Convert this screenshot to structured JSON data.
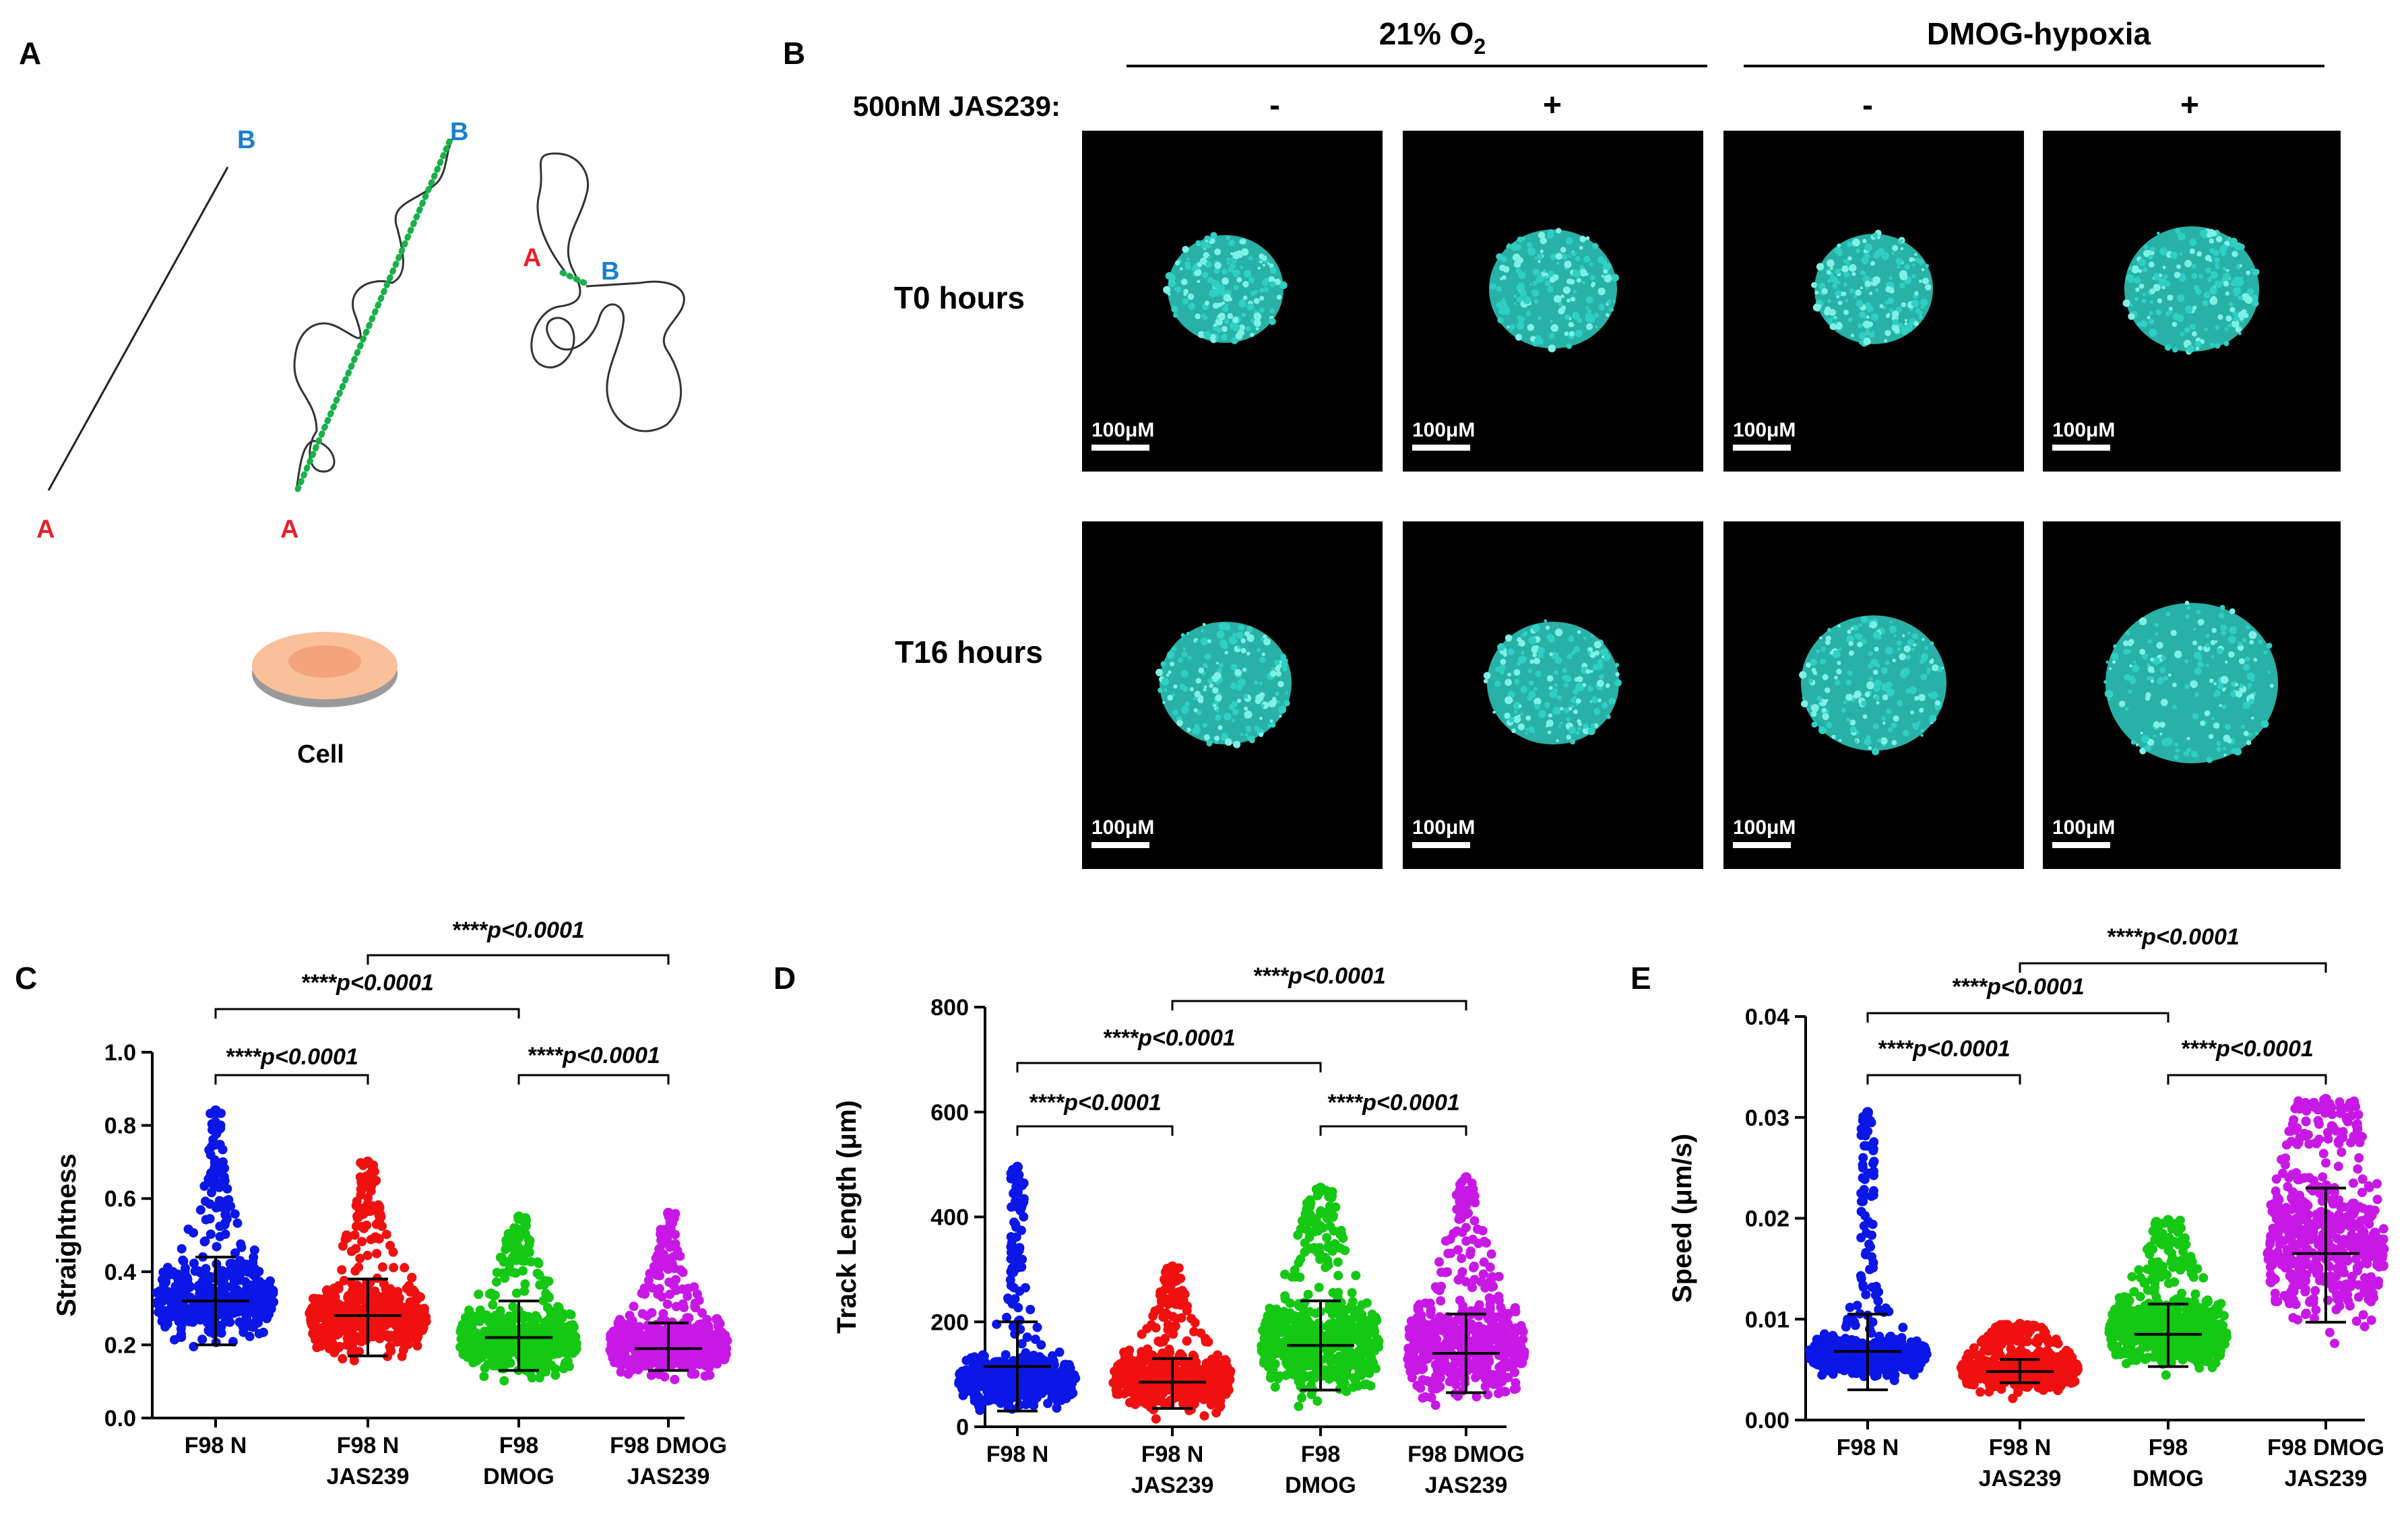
{
  "panels": {
    "a": {
      "label": "A",
      "point_a": "A",
      "point_b": "B",
      "cell_label": "Cell",
      "colors": {
        "a": "#e8212b",
        "b": "#1a7fcf",
        "dots": "#18b04a",
        "cell": "#f9c09a",
        "cell_inner": "#f3a47c",
        "cell_shadow": "#9a9a9a"
      }
    },
    "b": {
      "label": "B",
      "headers": {
        "normoxia_base": "21% O",
        "normoxia_sub": "2",
        "hypoxia": "DMOG-hypoxia"
      },
      "jas_label": "500nM JAS239:",
      "jas_signs": [
        "-",
        "+",
        "-",
        "+"
      ],
      "row_labels": [
        "T0 hours",
        "T16 hours"
      ],
      "scale_bar": "100μM",
      "colors": {
        "background": "#000000",
        "spheroid": "#2fd0c4",
        "spheroid_bright": "#7ff0e6"
      }
    }
  },
  "chart_data": [
    {
      "panel_label": "C",
      "type": "scatter",
      "ylabel": "Straightness",
      "ylim": [
        0,
        1.0
      ],
      "yticks": [
        0.0,
        0.2,
        0.4,
        0.6,
        0.8,
        1.0
      ],
      "yticklabels": [
        "0.0",
        "0.2",
        "0.4",
        "0.6",
        "0.8",
        "1.0"
      ],
      "groups": [
        {
          "label": [
            "F98 N"
          ],
          "color": "#0a17e6",
          "mean": 0.32,
          "sd_low": 0.2,
          "sd_high": 0.44,
          "min": 0.1,
          "max": 0.84,
          "core_low": 0.2,
          "core_high": 0.45
        },
        {
          "label": [
            "F98 N",
            "JAS239"
          ],
          "color": "#f01010",
          "mean": 0.28,
          "sd_low": 0.17,
          "sd_high": 0.38,
          "min": 0.04,
          "max": 0.7,
          "core_low": 0.15,
          "core_high": 0.4
        },
        {
          "label": [
            "F98",
            "DMOG"
          ],
          "color": "#14c814",
          "mean": 0.22,
          "sd_low": 0.13,
          "sd_high": 0.32,
          "min": 0.03,
          "max": 0.55,
          "core_low": 0.1,
          "core_high": 0.33
        },
        {
          "label": [
            "F98 DMOG",
            "JAS239"
          ],
          "color": "#c818e6",
          "mean": 0.19,
          "sd_low": 0.13,
          "sd_high": 0.26,
          "min": 0.04,
          "max": 0.56,
          "core_low": 0.1,
          "core_high": 0.3
        }
      ],
      "comparisons": [
        {
          "from": 0,
          "to": 1,
          "text": "****p<0.0001"
        },
        {
          "from": 2,
          "to": 3,
          "text": "****p<0.0001"
        },
        {
          "from": 0,
          "to": 2,
          "text": "****p<0.0001"
        },
        {
          "from": 1,
          "to": 3,
          "text": "****p<0.0001"
        }
      ]
    },
    {
      "panel_label": "D",
      "type": "scatter",
      "ylabel": "Track Length (μm)",
      "ylim": [
        0,
        800
      ],
      "yticks": [
        0,
        200,
        400,
        600,
        800
      ],
      "yticklabels": [
        "0",
        "200",
        "400",
        "600",
        "800"
      ],
      "groups": [
        {
          "label": [
            "F98 N"
          ],
          "color": "#0a17e6",
          "mean": 115,
          "sd_low": 30,
          "sd_high": 200,
          "min": 10,
          "max": 495,
          "core_low": 30,
          "core_high": 150
        },
        {
          "label": [
            "F98 N",
            "JAS239"
          ],
          "color": "#f01010",
          "mean": 85,
          "sd_low": 35,
          "sd_high": 130,
          "min": 15,
          "max": 305,
          "core_low": 20,
          "core_high": 160
        },
        {
          "label": [
            "F98",
            "DMOG"
          ],
          "color": "#14c814",
          "mean": 155,
          "sd_low": 70,
          "sd_high": 240,
          "min": 20,
          "max": 455,
          "core_low": 40,
          "core_high": 280
        },
        {
          "label": [
            "F98 DMOG",
            "JAS239"
          ],
          "color": "#c818e6",
          "mean": 140,
          "sd_low": 65,
          "sd_high": 215,
          "min": 25,
          "max": 475,
          "core_low": 40,
          "core_high": 260
        }
      ],
      "comparisons": [
        {
          "from": 0,
          "to": 1,
          "text": "****p<0.0001"
        },
        {
          "from": 2,
          "to": 3,
          "text": "****p<0.0001"
        },
        {
          "from": 0,
          "to": 2,
          "text": "****p<0.0001"
        },
        {
          "from": 1,
          "to": 3,
          "text": "****p<0.0001"
        }
      ]
    },
    {
      "panel_label": "E",
      "type": "scatter",
      "ylabel": "Speed (μm/s)",
      "ylim": [
        0,
        0.04
      ],
      "yticks": [
        0.0,
        0.01,
        0.02,
        0.03,
        0.04
      ],
      "yticklabels": [
        "0.00",
        "0.01",
        "0.02",
        "0.03",
        "0.04"
      ],
      "groups": [
        {
          "label": [
            "F98 N"
          ],
          "color": "#0a17e6",
          "mean": 0.0068,
          "sd_low": 0.003,
          "sd_high": 0.0105,
          "min": 0.002,
          "max": 0.0305,
          "core_low": 0.004,
          "core_high": 0.009
        },
        {
          "label": [
            "F98 N",
            "JAS239"
          ],
          "color": "#f01010",
          "mean": 0.0048,
          "sd_low": 0.0037,
          "sd_high": 0.006,
          "min": 0.002,
          "max": 0.0095,
          "core_low": 0.0025,
          "core_high": 0.0075
        },
        {
          "label": [
            "F98",
            "DMOG"
          ],
          "color": "#14c814",
          "mean": 0.0085,
          "sd_low": 0.0053,
          "sd_high": 0.0115,
          "min": 0.003,
          "max": 0.0198,
          "core_low": 0.0045,
          "core_high": 0.0135
        },
        {
          "label": [
            "F98 DMOG",
            "JAS239"
          ],
          "color": "#c818e6",
          "mean": 0.0165,
          "sd_low": 0.0097,
          "sd_high": 0.023,
          "min": 0.0055,
          "max": 0.0318,
          "core_low": 0.008,
          "core_high": 0.027
        }
      ],
      "comparisons": [
        {
          "from": 0,
          "to": 1,
          "text": "****p<0.0001"
        },
        {
          "from": 2,
          "to": 3,
          "text": "****p<0.0001"
        },
        {
          "from": 0,
          "to": 2,
          "text": "****p<0.0001"
        },
        {
          "from": 1,
          "to": 3,
          "text": "****p<0.0001"
        }
      ]
    }
  ]
}
